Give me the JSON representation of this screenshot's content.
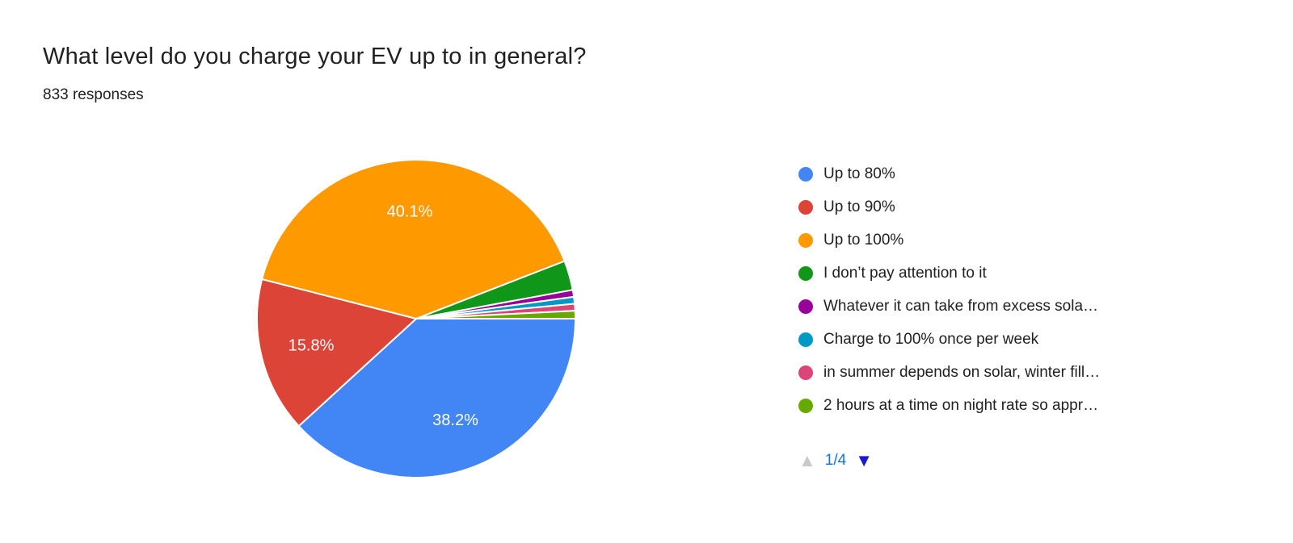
{
  "header": {
    "title": "What level do you charge your EV up to in general?",
    "responses": "833 responses"
  },
  "chart_data": {
    "type": "pie",
    "title": "What level do you charge your EV up to in general?",
    "subtitle": "833 responses",
    "categories": [
      "Up to 80%",
      "Up to 90%",
      "Up to 100%",
      "I don’t pay attention to it",
      "Whatever it can take from excess sola…",
      "Charge to 100% once per week",
      "in summer depends on solar, winter fill…",
      "2 hours at a time on night rate so appr…"
    ],
    "values": [
      38.2,
      15.8,
      40.1,
      3.0,
      0.7,
      0.7,
      0.7,
      0.8
    ],
    "slice_labels": [
      "38.2%",
      "15.8%",
      "40.1%",
      "",
      "",
      "",
      "",
      ""
    ],
    "colors": [
      "#4285f4",
      "#db4437",
      "#ff9900",
      "#109618",
      "#990099",
      "#0099c6",
      "#dd4477",
      "#66aa00"
    ],
    "start_angle_deg": 0,
    "direction": "clockwise",
    "legend_position": "right",
    "slice_label_color": "#ffffff"
  },
  "pagination": {
    "up_icon": "▲",
    "page_indicator": "1/4",
    "down_icon": "▼"
  }
}
